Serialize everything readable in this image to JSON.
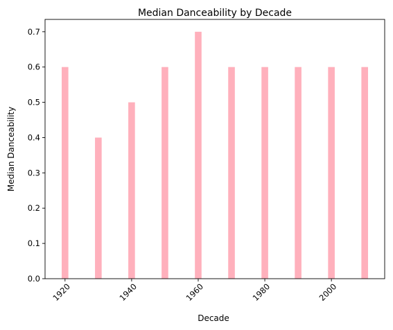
{
  "chart_data": {
    "type": "bar",
    "title": "Median Danceability by Decade",
    "xlabel": "Decade",
    "ylabel": "Median Danceability",
    "x": [
      1920,
      1930,
      1940,
      1950,
      1960,
      1970,
      1980,
      1990,
      2000,
      2010
    ],
    "values": [
      0.6,
      0.4,
      0.5,
      0.6,
      0.7,
      0.6,
      0.6,
      0.6,
      0.6,
      0.6
    ],
    "xticks": [
      1920,
      1940,
      1960,
      1980,
      2000
    ],
    "xtick_labels": [
      "1920",
      "1940",
      "1960",
      "1980",
      "2000"
    ],
    "yticks": [
      0.0,
      0.1,
      0.2,
      0.3,
      0.4,
      0.5,
      0.6,
      0.7
    ],
    "ytick_labels": [
      "0.0",
      "0.1",
      "0.2",
      "0.3",
      "0.4",
      "0.5",
      "0.6",
      "0.7"
    ],
    "xlim": [
      1914,
      2016
    ],
    "ylim": [
      0,
      0.735
    ],
    "bar_width": 2,
    "bar_color": "#ffb0bc",
    "grid": false,
    "xtick_rotation": 45
  }
}
